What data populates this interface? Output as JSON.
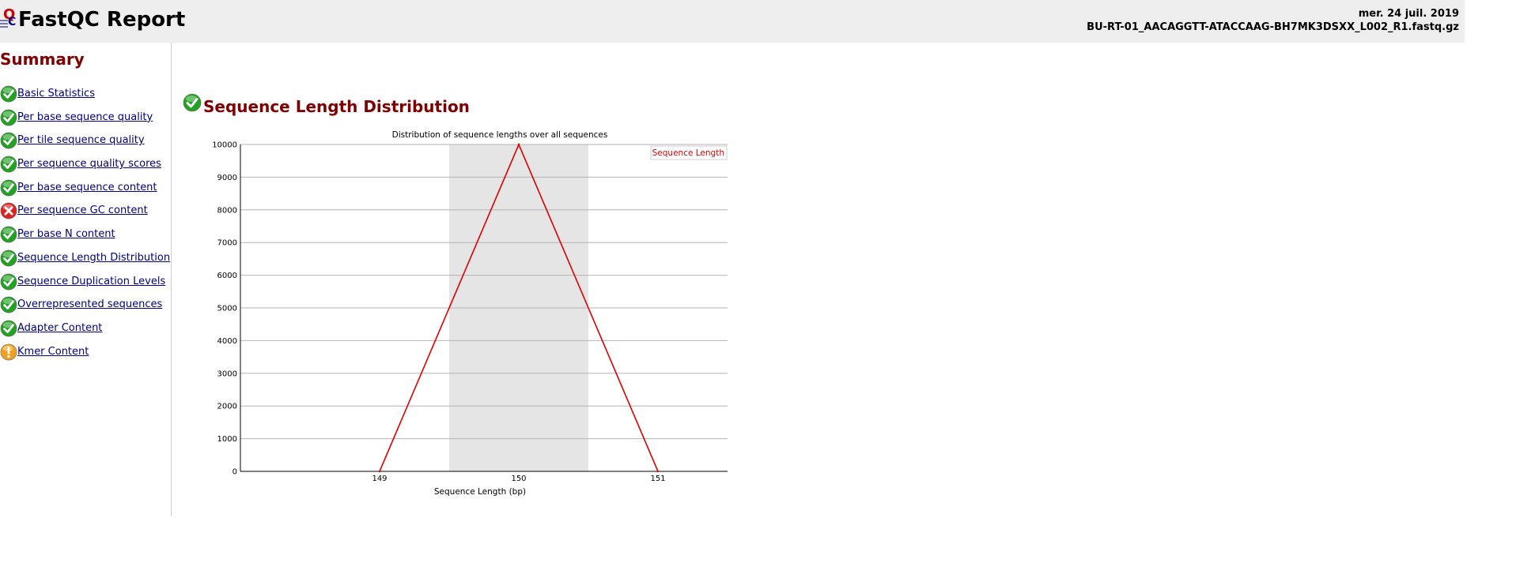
{
  "header": {
    "title": "FastQC Report",
    "date": "mer. 24 juil. 2019",
    "filename": "BU-RT-01_AACAGGTT-ATACCAAG-BH7MK3DSXX_L002_R1.fastq.gz"
  },
  "summary": {
    "title": "Summary",
    "modules": [
      {
        "label": "Basic Statistics",
        "status": "pass"
      },
      {
        "label": "Per base sequence quality",
        "status": "pass"
      },
      {
        "label": "Per tile sequence quality",
        "status": "pass"
      },
      {
        "label": "Per sequence quality scores",
        "status": "pass"
      },
      {
        "label": "Per base sequence content",
        "status": "pass"
      },
      {
        "label": "Per sequence GC content",
        "status": "fail"
      },
      {
        "label": "Per base N content",
        "status": "pass"
      },
      {
        "label": "Sequence Length Distribution",
        "status": "pass"
      },
      {
        "label": "Sequence Duplication Levels",
        "status": "pass"
      },
      {
        "label": "Overrepresented sequences",
        "status": "pass"
      },
      {
        "label": "Adapter Content",
        "status": "pass"
      },
      {
        "label": "Kmer Content",
        "status": "warn"
      }
    ]
  },
  "main": {
    "title": "Sequence Length Distribution",
    "status": "pass"
  },
  "colors": {
    "pass": "#22a222",
    "fail": "#dd2222",
    "warn": "#f0a020",
    "heading": "#800000",
    "link": "#000080",
    "series": "#dd0000",
    "band": "#e5e5e5"
  },
  "chart_data": {
    "type": "line",
    "title": "Distribution of sequence lengths over all sequences",
    "xlabel": "Sequence Length (bp)",
    "ylabel": "",
    "categories": [
      "149",
      "150",
      "151"
    ],
    "x": [
      149,
      150,
      151
    ],
    "series": [
      {
        "name": "Sequence Length",
        "values": [
          0,
          10000,
          0
        ]
      }
    ],
    "ylim": [
      0,
      10000
    ],
    "yticks": [
      0,
      1000,
      2000,
      3000,
      4000,
      5000,
      6000,
      7000,
      8000,
      9000,
      10000
    ],
    "highlight_band": [
      149.5,
      150.5
    ],
    "grid": true,
    "legend": "top-right"
  }
}
